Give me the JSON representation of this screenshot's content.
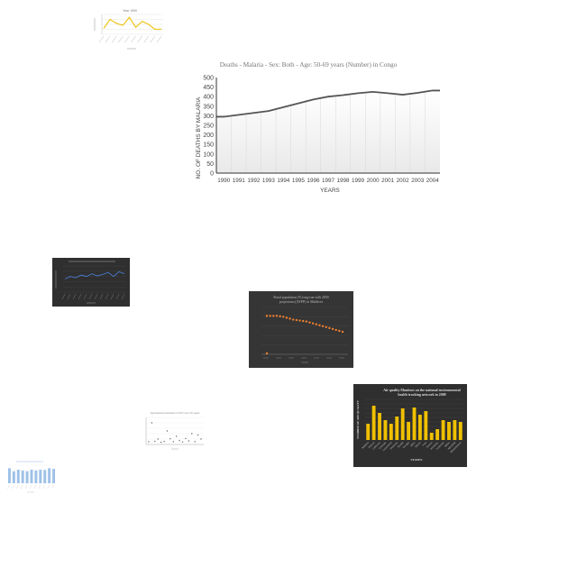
{
  "chart_data": [
    {
      "type": "line",
      "title": "Year 1990",
      "categories": [
        "a",
        "b",
        "c",
        "d",
        "e",
        "f",
        "g",
        "h",
        "i",
        "j"
      ],
      "values": [
        12,
        30,
        22,
        18,
        34,
        14,
        26,
        20,
        10,
        10
      ],
      "ylim": [
        0,
        40
      ],
      "color": "#f0c419"
    },
    {
      "type": "line",
      "title": "Deaths - Malaria - Sex: Both - Age: 50-69 years (Number) in Congo",
      "xlabel": "YEARS",
      "ylabel": "NO. OF DEATHS BY MALARIA",
      "categories": [
        "1990",
        "1991",
        "1992",
        "1993",
        "1994",
        "1995",
        "1996",
        "1997",
        "1998",
        "1999",
        "2000",
        "2001",
        "2002",
        "2003",
        "2004"
      ],
      "values": [
        295,
        305,
        315,
        325,
        345,
        365,
        385,
        400,
        408,
        418,
        425,
        418,
        410,
        420,
        432
      ],
      "ylim": [
        0,
        500
      ],
      "yticks": [
        0,
        50,
        100,
        150,
        200,
        250,
        300,
        350,
        400,
        450,
        500
      ],
      "color": "#555555"
    },
    {
      "type": "line",
      "ylim": [
        0,
        10
      ],
      "values": [
        5,
        6,
        5.5,
        6.5,
        6,
        7,
        6.2,
        6.8,
        7.5,
        6,
        7.8,
        7
      ],
      "color": "#4a7bd0"
    },
    {
      "type": "scatter",
      "title": "Rural population (% long-run with 2050 projections) (WPP) in Maldives",
      "ylim": [
        0,
        100
      ],
      "values": [
        82,
        82,
        82,
        82,
        81,
        80,
        78,
        76,
        74,
        73,
        72,
        71,
        70,
        68,
        66,
        64,
        62,
        60,
        58,
        56,
        54,
        52,
        50,
        48
      ],
      "outlier": 2,
      "color": "#f08030"
    },
    {
      "type": "scatter",
      "title": "Agricultural production in FCT over 10 years",
      "ylim": [
        0,
        10
      ],
      "values": [
        1,
        8,
        1.2,
        2,
        0.8,
        1.1,
        5,
        2.1,
        1,
        3,
        1.4,
        0.9,
        2.2,
        1.3,
        4,
        1,
        3.5,
        2
      ],
      "color": "#666666"
    },
    {
      "type": "bar",
      "title": "Air quality Monitors on the national environmental health tracking network in 2009",
      "xlabel": "STATES",
      "ylabel": "NUMBER OF AIR QUALITY",
      "categories": [
        "Alabama",
        "Arizona",
        "California",
        "Colorado",
        "Connecticut",
        "Delaware",
        "Florida",
        "Georgia",
        "Idaho",
        "Illinois",
        "Iowa",
        "Kansas",
        "Kentucky",
        "Louisiana",
        "Maine",
        "Maryland",
        "Massachusetts"
      ],
      "values": [
        18,
        38,
        30,
        22,
        18,
        26,
        35,
        20,
        36,
        28,
        32,
        8,
        12,
        22,
        20,
        22,
        20
      ],
      "ylim": [
        0,
        45
      ],
      "color": "#f0c000"
    },
    {
      "type": "bar",
      "values": [
        10,
        8,
        9,
        8.5,
        8,
        9,
        8.5,
        9,
        8.8,
        10,
        9.5
      ],
      "ylim": [
        0,
        12
      ],
      "color": "#9ec1e8"
    }
  ]
}
